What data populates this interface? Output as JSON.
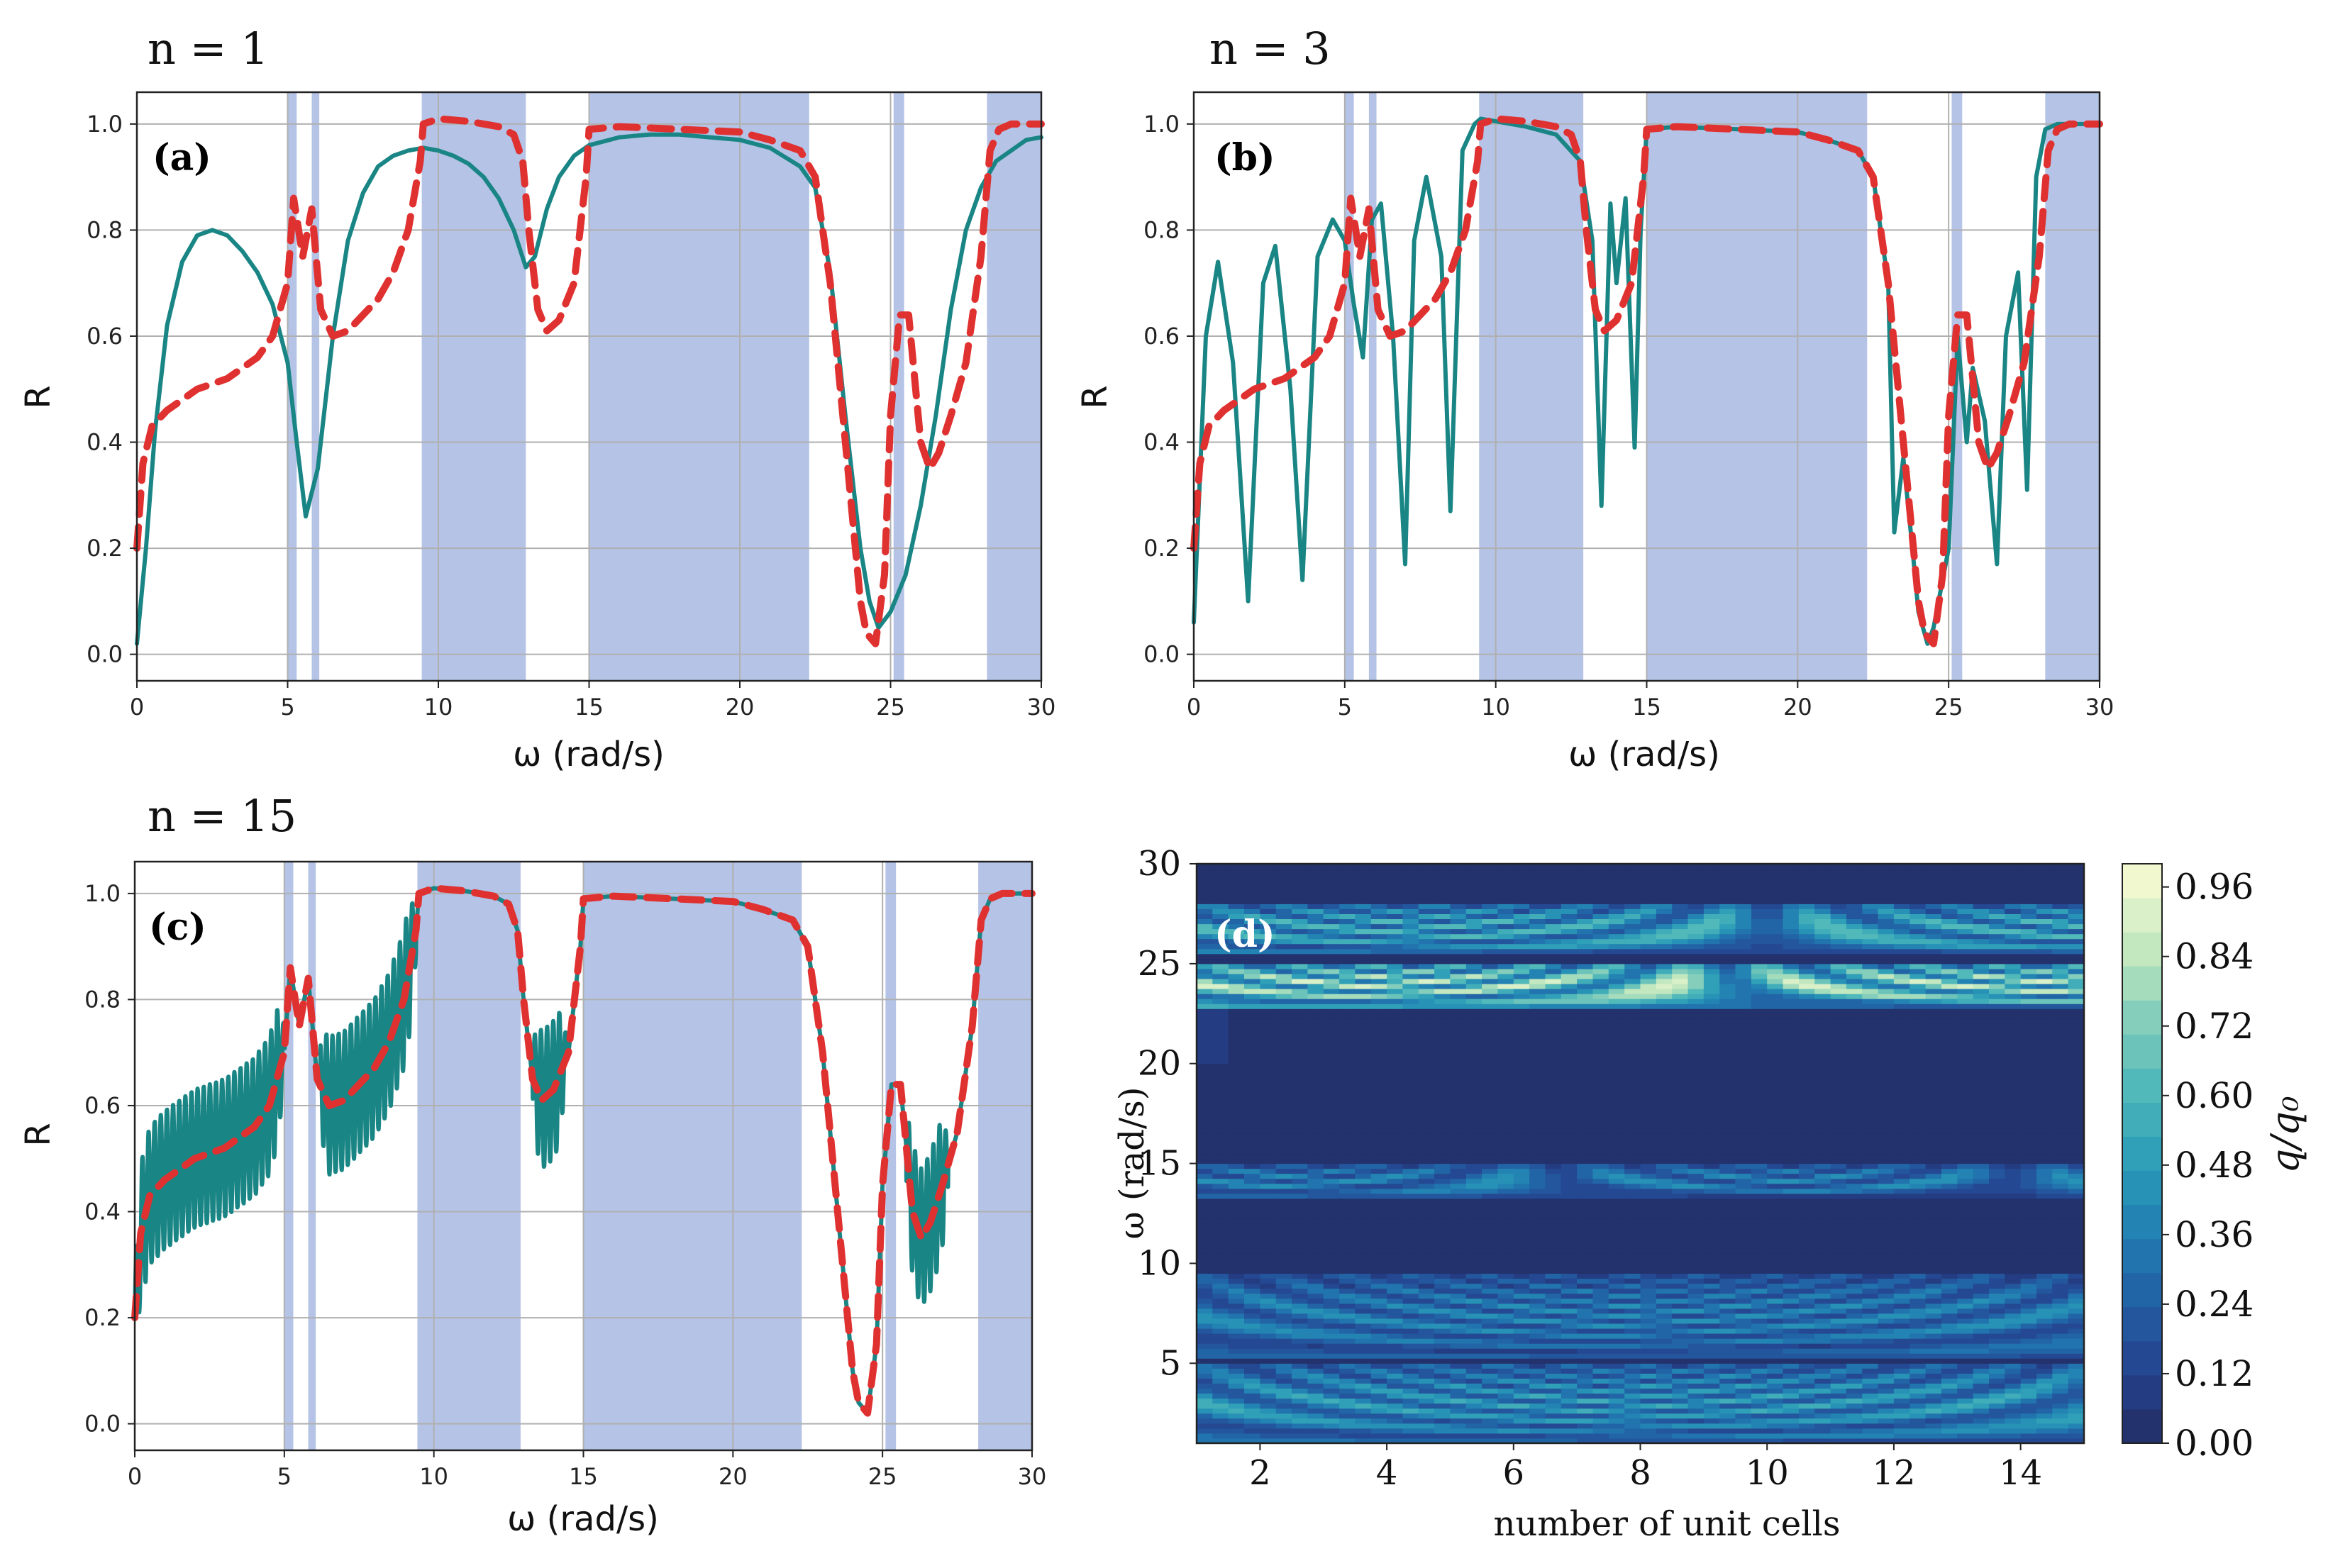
{
  "colors": {
    "band": "#b4c3e6",
    "teal": "#1a8585",
    "red": "#e03131",
    "grid": "#b0b0b0",
    "heat_low": "#232c62",
    "heat_high": "#fcfcd4"
  },
  "chart_data": [
    {
      "id": "a",
      "type": "line",
      "panel_label": "(a)",
      "n_title": "n =  1",
      "xlabel": "ω (rad/s)",
      "ylabel": "R",
      "xlim": [
        0,
        30
      ],
      "ylim": [
        -0.05,
        1.06
      ],
      "xticks": [
        "0",
        "5",
        "10",
        "15",
        "20",
        "25",
        "30"
      ],
      "yticks": [
        "0.0",
        "0.2",
        "0.4",
        "0.6",
        "0.8",
        "1.0"
      ],
      "grid": true,
      "bands": [
        [
          5.0,
          5.3
        ],
        [
          5.8,
          6.05
        ],
        [
          9.45,
          12.9
        ],
        [
          15.0,
          22.3
        ],
        [
          25.1,
          25.45
        ],
        [
          28.2,
          30.0
        ]
      ],
      "series": [
        {
          "style": "solid-teal",
          "x": [
            0,
            0.3,
            0.6,
            1,
            1.5,
            2,
            2.5,
            3,
            3.5,
            4,
            4.5,
            5,
            5.3,
            5.6,
            6,
            6.5,
            7,
            7.5,
            8,
            8.5,
            9,
            9.5,
            10,
            10.5,
            11,
            11.5,
            12,
            12.5,
            12.9,
            13.2,
            13.6,
            14,
            14.5,
            15,
            16,
            17,
            18,
            19,
            20,
            21,
            22,
            22.5,
            23,
            23.5,
            24,
            24.3,
            24.6,
            25,
            25.5,
            26,
            26.5,
            27,
            27.5,
            28,
            28.5,
            29,
            29.5,
            30
          ],
          "y": [
            0.02,
            0.2,
            0.42,
            0.62,
            0.74,
            0.79,
            0.8,
            0.79,
            0.76,
            0.72,
            0.66,
            0.55,
            0.4,
            0.26,
            0.35,
            0.6,
            0.78,
            0.87,
            0.92,
            0.94,
            0.95,
            0.955,
            0.95,
            0.94,
            0.925,
            0.9,
            0.86,
            0.8,
            0.73,
            0.75,
            0.84,
            0.9,
            0.94,
            0.96,
            0.975,
            0.98,
            0.98,
            0.975,
            0.97,
            0.955,
            0.92,
            0.88,
            0.72,
            0.45,
            0.2,
            0.1,
            0.05,
            0.08,
            0.15,
            0.28,
            0.45,
            0.65,
            0.8,
            0.88,
            0.93,
            0.95,
            0.97,
            0.975
          ]
        },
        {
          "style": "dashed-red",
          "x": [
            0,
            0.2,
            0.5,
            1,
            1.5,
            2,
            2.5,
            3,
            3.5,
            4,
            4.5,
            5,
            5.2,
            5.5,
            5.8,
            6.1,
            6.5,
            7,
            7.5,
            8,
            8.5,
            9,
            9.4,
            9.5,
            10,
            11,
            12,
            12.5,
            12.8,
            13,
            13.3,
            13.6,
            14,
            14.5,
            14.9,
            15,
            16,
            18,
            20,
            21,
            22,
            22.5,
            23,
            23.5,
            24,
            24.2,
            24.5,
            24.8,
            25,
            25.3,
            25.6,
            26,
            26.3,
            26.6,
            27,
            27.5,
            28,
            28.3,
            28.6,
            29,
            30
          ],
          "y": [
            0.2,
            0.36,
            0.43,
            0.46,
            0.48,
            0.5,
            0.51,
            0.52,
            0.54,
            0.56,
            0.6,
            0.7,
            0.86,
            0.75,
            0.84,
            0.65,
            0.6,
            0.61,
            0.64,
            0.67,
            0.72,
            0.8,
            0.93,
            1.0,
            1.01,
            1.005,
            0.995,
            0.98,
            0.93,
            0.8,
            0.65,
            0.61,
            0.63,
            0.7,
            0.9,
            0.99,
            0.995,
            0.99,
            0.985,
            0.97,
            0.95,
            0.9,
            0.7,
            0.4,
            0.1,
            0.04,
            0.02,
            0.15,
            0.45,
            0.64,
            0.64,
            0.4,
            0.35,
            0.38,
            0.45,
            0.55,
            0.75,
            0.95,
            0.99,
            1.0,
            1.0
          ]
        }
      ]
    },
    {
      "id": "b",
      "type": "line",
      "panel_label": "(b)",
      "n_title": "n =  3",
      "xlabel": "ω (rad/s)",
      "ylabel": "R",
      "xlim": [
        0,
        30
      ],
      "ylim": [
        -0.05,
        1.06
      ],
      "xticks": [
        "0",
        "5",
        "10",
        "15",
        "20",
        "25",
        "30"
      ],
      "yticks": [
        "0.0",
        "0.2",
        "0.4",
        "0.6",
        "0.8",
        "1.0"
      ],
      "grid": true,
      "bands": [
        [
          5.0,
          5.3
        ],
        [
          5.8,
          6.05
        ],
        [
          9.45,
          12.9
        ],
        [
          15.0,
          22.3
        ],
        [
          25.1,
          25.45
        ],
        [
          28.2,
          30.0
        ]
      ],
      "series": [
        {
          "style": "solid-teal",
          "x": [
            0,
            0.4,
            0.8,
            1.3,
            1.8,
            2.3,
            2.7,
            3.2,
            3.6,
            4.1,
            4.6,
            5.0,
            5.3,
            5.6,
            5.9,
            6.2,
            6.6,
            7.0,
            7.3,
            7.7,
            8.2,
            8.5,
            8.9,
            9.3,
            9.5,
            10,
            11,
            12,
            12.8,
            13.2,
            13.5,
            13.8,
            14.0,
            14.3,
            14.6,
            14.8,
            15.0,
            16,
            18,
            20,
            21,
            22,
            22.5,
            23,
            23.2,
            23.5,
            23.8,
            24,
            24.3,
            24.5,
            25,
            25.3,
            25.6,
            25.8,
            26.2,
            26.6,
            26.9,
            27.3,
            27.6,
            27.9,
            28.2,
            28.6,
            29,
            30
          ],
          "y": [
            0.06,
            0.6,
            0.74,
            0.55,
            0.1,
            0.7,
            0.77,
            0.5,
            0.14,
            0.75,
            0.82,
            0.78,
            0.66,
            0.56,
            0.82,
            0.85,
            0.6,
            0.17,
            0.78,
            0.9,
            0.75,
            0.27,
            0.95,
            1.0,
            1.01,
            1.005,
            0.995,
            0.98,
            0.93,
            0.78,
            0.28,
            0.85,
            0.7,
            0.86,
            0.39,
            0.8,
            0.99,
            0.995,
            0.99,
            0.985,
            0.97,
            0.95,
            0.9,
            0.7,
            0.23,
            0.37,
            0.2,
            0.08,
            0.02,
            0.05,
            0.2,
            0.6,
            0.4,
            0.54,
            0.44,
            0.17,
            0.6,
            0.72,
            0.31,
            0.9,
            0.99,
            1.0,
            1.0,
            1.0
          ]
        },
        {
          "style": "dashed-red",
          "x": [
            0,
            0.2,
            0.5,
            1,
            1.5,
            2,
            2.5,
            3,
            3.5,
            4,
            4.5,
            5,
            5.2,
            5.5,
            5.8,
            6.1,
            6.5,
            7,
            7.5,
            8,
            8.5,
            9,
            9.4,
            9.5,
            10,
            11,
            12,
            12.5,
            12.8,
            13,
            13.3,
            13.6,
            14,
            14.5,
            14.9,
            15,
            16,
            18,
            20,
            21,
            22,
            22.5,
            23,
            23.5,
            24,
            24.2,
            24.5,
            24.8,
            25,
            25.3,
            25.6,
            26,
            26.3,
            26.6,
            27,
            27.5,
            28,
            28.3,
            28.6,
            29,
            30
          ],
          "y": [
            0.2,
            0.36,
            0.43,
            0.46,
            0.48,
            0.5,
            0.51,
            0.52,
            0.54,
            0.56,
            0.6,
            0.7,
            0.86,
            0.75,
            0.84,
            0.65,
            0.6,
            0.61,
            0.64,
            0.67,
            0.72,
            0.8,
            0.93,
            1.0,
            1.01,
            1.005,
            0.995,
            0.98,
            0.93,
            0.8,
            0.65,
            0.61,
            0.63,
            0.7,
            0.9,
            0.99,
            0.995,
            0.99,
            0.985,
            0.97,
            0.95,
            0.9,
            0.7,
            0.4,
            0.1,
            0.04,
            0.02,
            0.15,
            0.45,
            0.64,
            0.64,
            0.4,
            0.35,
            0.38,
            0.45,
            0.55,
            0.75,
            0.95,
            0.99,
            1.0,
            1.0
          ]
        }
      ]
    },
    {
      "id": "c",
      "type": "line",
      "panel_label": "(c)",
      "n_title": "n =  15",
      "xlabel": "ω (rad/s)",
      "ylabel": "R",
      "xlim": [
        0,
        30
      ],
      "ylim": [
        -0.05,
        1.06
      ],
      "xticks": [
        "0",
        "5",
        "10",
        "15",
        "20",
        "25",
        "30"
      ],
      "yticks": [
        "0.0",
        "0.2",
        "0.4",
        "0.6",
        "0.8",
        "1.0"
      ],
      "grid": true,
      "bands": [
        [
          5.0,
          5.3
        ],
        [
          5.8,
          6.05
        ],
        [
          9.45,
          12.9
        ],
        [
          15.0,
          22.3
        ],
        [
          25.1,
          25.45
        ],
        [
          28.2,
          30.0
        ]
      ],
      "oscillation_ranges": [
        [
          0.0,
          5.0
        ],
        [
          6.2,
          9.4
        ],
        [
          13.3,
          14.4
        ],
        [
          25.8,
          27.2
        ]
      ],
      "series": [
        {
          "style": "solid-teal",
          "x": [
            0,
            0.2,
            0.5,
            1,
            1.5,
            2,
            2.5,
            3,
            3.5,
            4,
            4.5,
            5,
            5.2,
            5.5,
            5.8,
            6.1,
            6.5,
            7,
            7.5,
            8,
            8.5,
            9,
            9.4,
            9.5,
            10,
            11,
            12,
            12.5,
            12.8,
            13,
            13.3,
            13.6,
            14,
            14.5,
            14.9,
            15,
            16,
            18,
            20,
            21,
            22,
            22.5,
            23,
            23.5,
            24,
            24.2,
            24.5,
            24.8,
            25,
            25.3,
            25.6,
            26,
            26.3,
            26.6,
            27,
            27.5,
            28,
            28.3,
            28.6,
            29,
            30
          ],
          "y": [
            0.2,
            0.36,
            0.43,
            0.46,
            0.48,
            0.5,
            0.51,
            0.52,
            0.54,
            0.56,
            0.6,
            0.7,
            0.86,
            0.75,
            0.84,
            0.65,
            0.6,
            0.61,
            0.64,
            0.67,
            0.72,
            0.8,
            0.93,
            1.0,
            1.01,
            1.005,
            0.995,
            0.98,
            0.93,
            0.8,
            0.65,
            0.61,
            0.63,
            0.7,
            0.9,
            0.99,
            0.995,
            0.99,
            0.985,
            0.97,
            0.95,
            0.9,
            0.7,
            0.4,
            0.1,
            0.04,
            0.02,
            0.15,
            0.45,
            0.64,
            0.64,
            0.4,
            0.35,
            0.38,
            0.45,
            0.55,
            0.75,
            0.95,
            0.99,
            1.0,
            1.0
          ]
        },
        {
          "style": "dashed-red",
          "x": [
            0,
            0.2,
            0.5,
            1,
            1.5,
            2,
            2.5,
            3,
            3.5,
            4,
            4.5,
            5,
            5.2,
            5.5,
            5.8,
            6.1,
            6.5,
            7,
            7.5,
            8,
            8.5,
            9,
            9.4,
            9.5,
            10,
            11,
            12,
            12.5,
            12.8,
            13,
            13.3,
            13.6,
            14,
            14.5,
            14.9,
            15,
            16,
            18,
            20,
            21,
            22,
            22.5,
            23,
            23.5,
            24,
            24.2,
            24.5,
            24.8,
            25,
            25.3,
            25.6,
            26,
            26.3,
            26.6,
            27,
            27.5,
            28,
            28.3,
            28.6,
            29,
            30
          ],
          "y": [
            0.2,
            0.36,
            0.43,
            0.46,
            0.48,
            0.5,
            0.51,
            0.52,
            0.54,
            0.56,
            0.6,
            0.7,
            0.86,
            0.75,
            0.84,
            0.65,
            0.6,
            0.61,
            0.64,
            0.67,
            0.72,
            0.8,
            0.93,
            1.0,
            1.01,
            1.005,
            0.995,
            0.98,
            0.93,
            0.8,
            0.65,
            0.61,
            0.63,
            0.7,
            0.9,
            0.99,
            0.995,
            0.99,
            0.985,
            0.97,
            0.95,
            0.9,
            0.7,
            0.4,
            0.1,
            0.04,
            0.02,
            0.15,
            0.45,
            0.64,
            0.64,
            0.4,
            0.35,
            0.38,
            0.45,
            0.55,
            0.75,
            0.95,
            0.99,
            1.0,
            1.0
          ]
        }
      ]
    },
    {
      "id": "d",
      "type": "heatmap",
      "panel_label": "(d)",
      "xlabel": "number of unit cells",
      "ylabel": "ω (rad/s)",
      "xlim": [
        1,
        15
      ],
      "ylim": [
        1,
        30
      ],
      "xticks": [
        "2",
        "4",
        "6",
        "8",
        "10",
        "12",
        "14"
      ],
      "yticks": [
        "5",
        "10",
        "15",
        "20",
        "25",
        "30"
      ],
      "colorbar": {
        "label": "q/q₀",
        "range": [
          0,
          1
        ],
        "ticks": [
          "0.00",
          "0.12",
          "0.24",
          "0.36",
          "0.48",
          "0.60",
          "0.72",
          "0.84",
          "0.96"
        ],
        "levels": 17
      },
      "pass_bands": [
        {
          "w_low": 1.0,
          "w_high": 5.0,
          "peak": 0.55
        },
        {
          "w_low": 5.3,
          "w_high": 9.4,
          "peak": 0.45
        },
        {
          "w_low": 13.3,
          "w_high": 15.0,
          "peak": 0.45
        },
        {
          "w_low": 22.8,
          "w_high": 25.1,
          "peak": 0.92
        },
        {
          "w_low": 25.5,
          "w_high": 28.0,
          "peak": 0.65
        }
      ]
    }
  ]
}
